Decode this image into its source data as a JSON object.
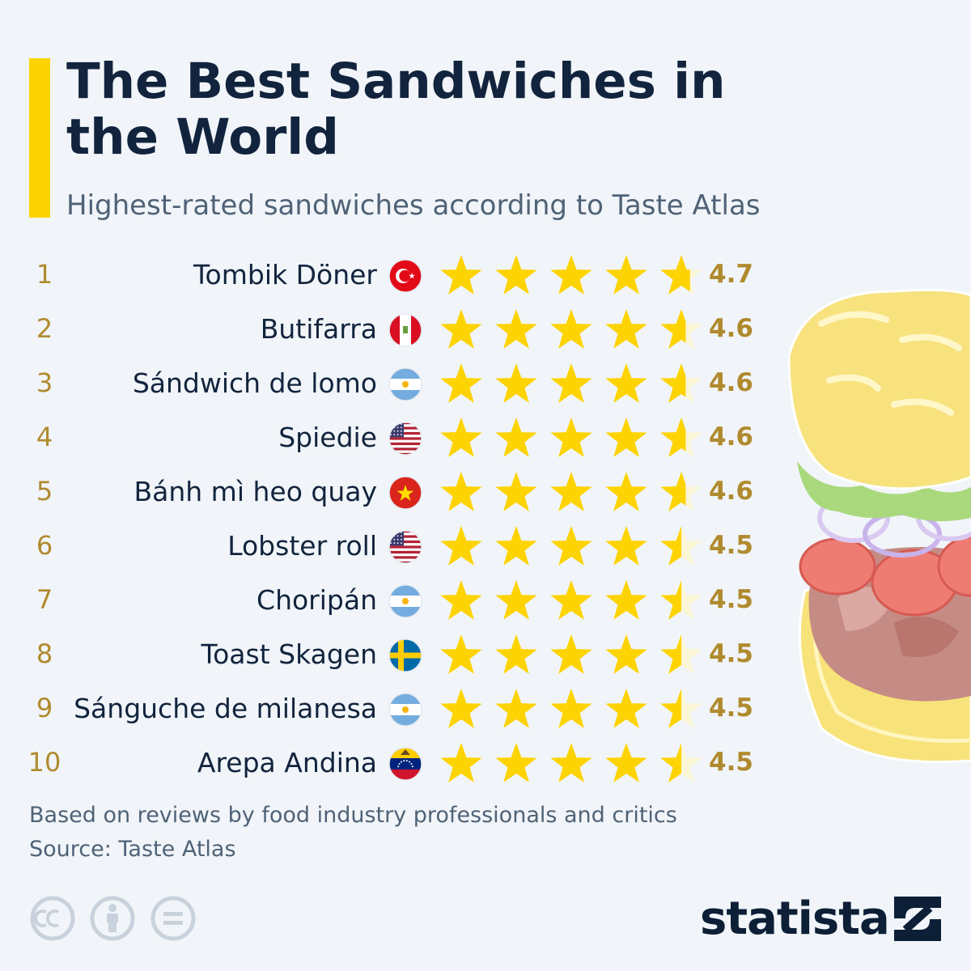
{
  "colors": {
    "background": "#f1f5f9",
    "accent": "#fdd301",
    "star": "#fdd301",
    "star_empty": "#fbf6d6",
    "rank": "#b08a2e",
    "text": "#12243d",
    "muted": "#4f6277"
  },
  "header": {
    "title": "The Best Sandwiches in the World",
    "subtitle": "Highest-rated sandwiches according to Taste Atlas"
  },
  "chart_data": {
    "type": "rating",
    "max_rating": 5,
    "rows": [
      {
        "rank": "1",
        "name": "Tombik Döner",
        "flag": "turkey-flag",
        "rating": 4.7,
        "label": "4.7"
      },
      {
        "rank": "2",
        "name": "Butifarra",
        "flag": "peru-flag",
        "rating": 4.6,
        "label": "4.6"
      },
      {
        "rank": "3",
        "name": "Sándwich de lomo",
        "flag": "argentina-flag",
        "rating": 4.6,
        "label": "4.6"
      },
      {
        "rank": "4",
        "name": "Spiedie",
        "flag": "usa-flag",
        "rating": 4.6,
        "label": "4.6"
      },
      {
        "rank": "5",
        "name": "Bánh mì heo quay",
        "flag": "vietnam-flag",
        "rating": 4.6,
        "label": "4.6"
      },
      {
        "rank": "6",
        "name": "Lobster roll",
        "flag": "usa-flag",
        "rating": 4.5,
        "label": "4.5"
      },
      {
        "rank": "7",
        "name": "Choripán",
        "flag": "argentina-flag",
        "rating": 4.5,
        "label": "4.5"
      },
      {
        "rank": "8",
        "name": "Toast Skagen",
        "flag": "sweden-flag",
        "rating": 4.5,
        "label": "4.5"
      },
      {
        "rank": "9",
        "name": "Sánguche de milanesa",
        "flag": "argentina-flag",
        "rating": 4.5,
        "label": "4.5"
      },
      {
        "rank": "10",
        "name": "Arepa Andina",
        "flag": "venezuela-flag",
        "rating": 4.5,
        "label": "4.5"
      }
    ]
  },
  "footer": {
    "note": "Based on reviews by food industry professionals and critics",
    "source": "Source: Taste Atlas",
    "brand": "statista",
    "license_icons": [
      "cc-icon",
      "attribution-icon",
      "no-derivatives-icon"
    ]
  },
  "illustration": "sandwich-illustration"
}
